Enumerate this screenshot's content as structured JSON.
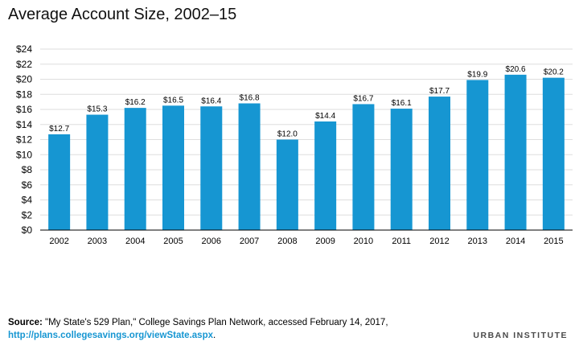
{
  "header": {
    "title": "Average Account Size, 2002–15"
  },
  "chart_data": {
    "type": "bar",
    "categories": [
      "2002",
      "2003",
      "2004",
      "2005",
      "2006",
      "2007",
      "2008",
      "2009",
      "2010",
      "2011",
      "2012",
      "2013",
      "2014",
      "2015"
    ],
    "values": [
      12.7,
      15.3,
      16.2,
      16.5,
      16.4,
      16.8,
      12.0,
      14.4,
      16.7,
      16.1,
      17.7,
      19.9,
      20.6,
      20.2
    ],
    "value_labels": [
      "$12.7",
      "$15.3",
      "$16.2",
      "$16.5",
      "$16.4",
      "$16.8",
      "$12.0",
      "$14.4",
      "$16.7",
      "$16.1",
      "$17.7",
      "$19.9",
      "$20.6",
      "$20.2"
    ],
    "yticks": [
      0,
      2,
      4,
      6,
      8,
      10,
      12,
      14,
      16,
      18,
      20,
      22,
      24
    ],
    "ytick_labels": [
      "$0",
      "$2",
      "$4",
      "$6",
      "$8",
      "$10",
      "$12",
      "$14",
      "$16",
      "$18",
      "$20",
      "$22",
      "$24"
    ],
    "ylim": [
      0,
      24
    ],
    "grid": true,
    "colors": {
      "bar": "#1696d2",
      "grid": "#dedede",
      "axis": "#000000"
    }
  },
  "footer": {
    "source_label": "Source:",
    "source_text": " \"My State's 529 Plan,\" College Savings Plan Network, accessed February 14, 2017,",
    "source_link": "http://plans.collegesavings.org/viewState.aspx",
    "source_end": ".",
    "brand": "URBAN INSTITUTE"
  }
}
